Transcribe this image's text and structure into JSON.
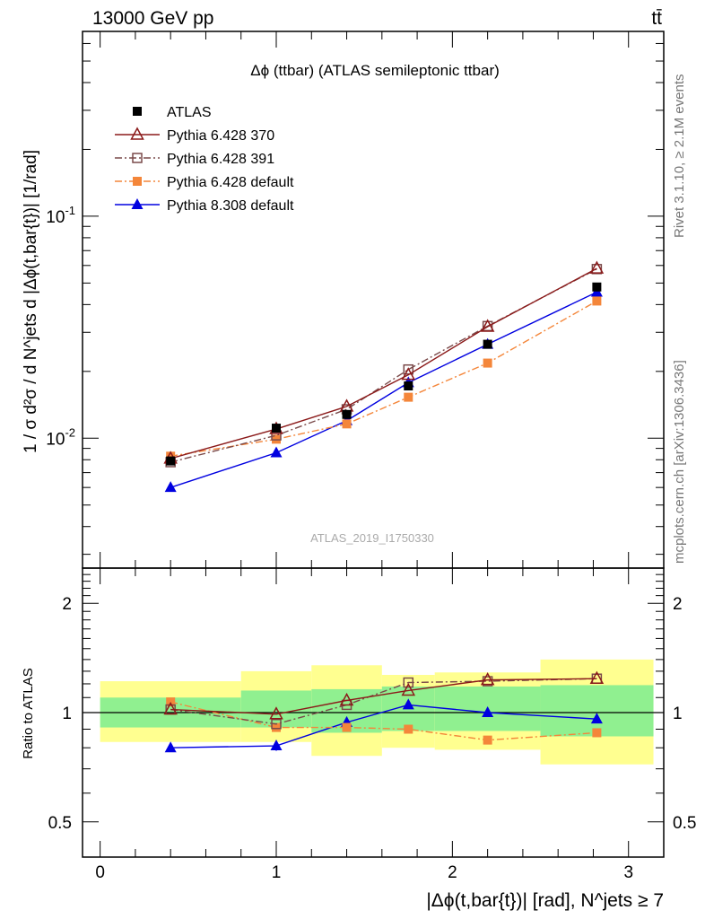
{
  "header": {
    "energy_label": "13000 GeV pp",
    "process_label": "tt̄"
  },
  "side_labels": {
    "rivet": "Rivet 3.1.10, ≥ 2.1M events",
    "mcplots": "mcplots.cern.ch [arXiv:1306.3436]"
  },
  "chart_data": [
    {
      "type": "line",
      "title": "Δϕ (ttbar) (ATLAS semileptonic ttbar)",
      "watermark": "ATLAS_2019_I1750330",
      "ylabel": "1 / σ d²σ / d N^jets d |Δϕ(t,bar{t})| [1/rad]",
      "yscale": "log",
      "ylim": [
        0.0026,
        0.68
      ],
      "xlim": [
        -0.1,
        3.2
      ],
      "yticks": [
        {
          "value": 0.01,
          "label": "10^-2"
        },
        {
          "value": 0.1,
          "label": "10^-1"
        }
      ],
      "legend_position": "top-left",
      "bins": [
        {
          "lo": 0.0,
          "hi": 0.8,
          "x": 0.4
        },
        {
          "lo": 0.8,
          "hi": 1.2,
          "x": 1.0
        },
        {
          "lo": 1.2,
          "hi": 1.6,
          "x": 1.4
        },
        {
          "lo": 1.6,
          "hi": 1.9,
          "x": 1.75
        },
        {
          "lo": 1.9,
          "hi": 2.5,
          "x": 2.2
        },
        {
          "lo": 2.5,
          "hi": 3.1416,
          "x": 2.82
        }
      ],
      "series": [
        {
          "name": "ATLAS",
          "color": "#000000",
          "marker": "square-filled",
          "line": "none",
          "values": [
            0.0079,
            0.0111,
            0.0128,
            0.0172,
            0.0265,
            0.048
          ]
        },
        {
          "name": "Pythia 6.428 370",
          "color": "#8b1a1a",
          "marker": "triangle-open",
          "line": "solid",
          "values": [
            0.0081,
            0.011,
            0.0139,
            0.0193,
            0.0318,
            0.0582
          ]
        },
        {
          "name": "Pythia 6.428 391",
          "color": "#7a4a4a",
          "marker": "square-open",
          "line": "dashdot",
          "values": [
            0.0078,
            0.0103,
            0.0135,
            0.0204,
            0.032,
            0.0578
          ]
        },
        {
          "name": "Pythia 6.428 default",
          "color": "#f4863a",
          "marker": "square-filled",
          "line": "dashdot",
          "values": [
            0.0083,
            0.0099,
            0.0116,
            0.0153,
            0.0218,
            0.0415
          ]
        },
        {
          "name": "Pythia 8.308 default",
          "color": "#0000e0",
          "marker": "triangle-filled",
          "line": "solid",
          "values": [
            0.006,
            0.0086,
            0.012,
            0.0178,
            0.0265,
            0.0455
          ]
        }
      ]
    },
    {
      "type": "line",
      "ylabel": "Ratio to ATLAS",
      "xlabel": "|Δϕ(t,bar{t})| [rad], N^jets ≥ 7",
      "xlim": [
        -0.1,
        3.2
      ],
      "ylim": [
        0.4,
        2.5
      ],
      "yscale": "log",
      "xticks": [
        "0",
        "1",
        "2",
        "3"
      ],
      "yticks": [
        {
          "value": 0.5,
          "label": "0.5"
        },
        {
          "value": 1,
          "label": "1"
        },
        {
          "value": 2,
          "label": "2"
        }
      ],
      "bands": {
        "stat": {
          "color": "#90f090",
          "lo": [
            0.91,
            0.91,
            0.88,
            0.89,
            0.89,
            0.86
          ],
          "hi": [
            1.1,
            1.15,
            1.16,
            1.18,
            1.18,
            1.19
          ]
        },
        "total": {
          "color": "#ffff90",
          "lo": [
            0.83,
            0.83,
            0.76,
            0.8,
            0.79,
            0.72
          ],
          "hi": [
            1.22,
            1.3,
            1.35,
            1.27,
            1.29,
            1.4
          ]
        }
      },
      "series": [
        {
          "name": "Pythia 6.428 370",
          "color": "#8b1a1a",
          "marker": "triangle-open",
          "line": "solid",
          "values": [
            1.02,
            0.99,
            1.08,
            1.15,
            1.23,
            1.24
          ]
        },
        {
          "name": "Pythia 6.428 391",
          "color": "#7a4a4a",
          "marker": "square-open",
          "line": "dashdot",
          "values": [
            1.02,
            0.93,
            1.05,
            1.21,
            1.22,
            1.24
          ]
        },
        {
          "name": "Pythia 6.428 default",
          "color": "#f4863a",
          "marker": "square-filled",
          "line": "dashdot",
          "values": [
            1.07,
            0.91,
            0.91,
            0.9,
            0.84,
            0.88
          ],
          "err": [
            0,
            0.02,
            0,
            0.02,
            0,
            0
          ]
        },
        {
          "name": "Pythia 8.308 default",
          "color": "#0000e0",
          "marker": "triangle-filled",
          "line": "solid",
          "values": [
            0.8,
            0.81,
            0.94,
            1.05,
            1.0,
            0.96
          ],
          "err": [
            0.02,
            0.025,
            0.02,
            0.02,
            0,
            0
          ]
        }
      ]
    }
  ]
}
